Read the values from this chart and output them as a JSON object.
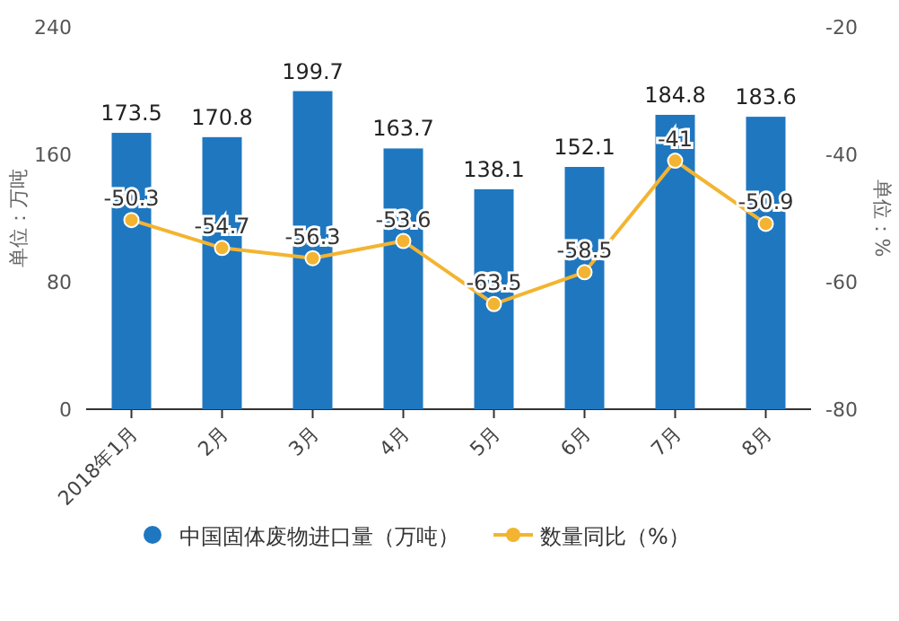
{
  "chart_data": {
    "type": "bar",
    "categories": [
      "2018年1月",
      "2月",
      "3月",
      "4月",
      "5月",
      "6月",
      "7月",
      "8月"
    ],
    "series": [
      {
        "name": "中国固体废物进口量（万吨）",
        "color": "#1f77c0",
        "values": [
          173.5,
          170.8,
          199.7,
          163.7,
          138.1,
          152.1,
          184.8,
          183.6
        ]
      },
      {
        "name": "数量同比（%）",
        "type": "line",
        "axis": "y2",
        "color": "#f3b431",
        "values": [
          -50.3,
          -54.7,
          -56.3,
          -53.6,
          -63.5,
          -58.5,
          -41,
          -50.9
        ]
      }
    ],
    "ylabel": "单位：万吨",
    "y2label": "单位：%",
    "ylim": [
      0,
      240
    ],
    "yticks": [
      0,
      80,
      160,
      240
    ],
    "y2lim": [
      -80,
      -20
    ],
    "y2ticks": [
      -80,
      -60,
      -40,
      -20
    ],
    "data_labels": true,
    "legend": "bottom",
    "marker": "circle"
  }
}
